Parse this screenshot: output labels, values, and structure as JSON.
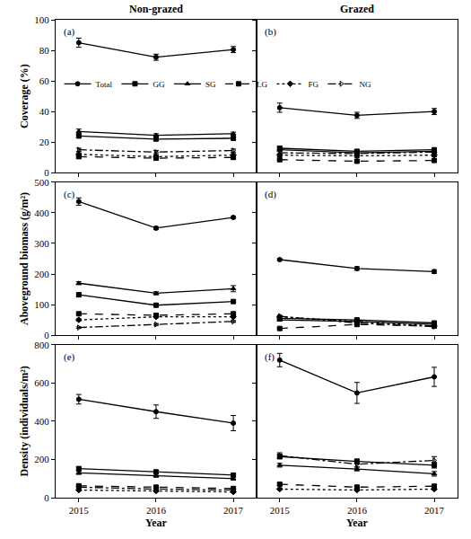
{
  "chart_data": [
    {
      "type": "line",
      "title": "Non-grazed",
      "annotations": [
        "(a)"
      ],
      "ylabel": "Coverage (%)",
      "x": [
        2015,
        2016,
        2017
      ],
      "xlim": [
        2014.7,
        2017.3
      ],
      "xticks": [
        2015,
        2016,
        2017
      ],
      "ylim": [
        0,
        100
      ],
      "yticks": [
        0,
        20,
        40,
        60,
        80,
        100
      ],
      "tick_labels": "y",
      "legend": "upper left",
      "series": [
        {
          "name": "Total",
          "values": [
            85,
            75.5,
            80.5
          ],
          "errors": [
            3,
            2,
            2
          ],
          "color": "#000000",
          "marker": "circle",
          "line_style": "solid"
        },
        {
          "name": "GG",
          "values": [
            24,
            22,
            22.5
          ],
          "errors": [
            1,
            1,
            1
          ],
          "color": "#000000",
          "marker": "square",
          "line_style": "solid"
        },
        {
          "name": "SG",
          "values": [
            27,
            24.5,
            25.5
          ],
          "errors": [
            1.5,
            1,
            1
          ],
          "color": "#000000",
          "marker": "triangle-up",
          "line_style": "solid"
        },
        {
          "name": "LG",
          "values": [
            10.5,
            9.5,
            10
          ],
          "errors": [
            1,
            1,
            1
          ],
          "color": "#000000",
          "marker": "square",
          "line_style": "dash"
        },
        {
          "name": "FG",
          "values": [
            12,
            10.5,
            11.5
          ],
          "errors": [
            1,
            1,
            1
          ],
          "color": "#000000",
          "marker": "diamond",
          "line_style": "dot"
        },
        {
          "name": "NG",
          "values": [
            15,
            13.5,
            14.5
          ],
          "errors": [
            1,
            1,
            1
          ],
          "color": "#000000",
          "marker": "triangle-right-open",
          "line_style": "dashdot"
        }
      ]
    },
    {
      "type": "line",
      "title": "Grazed",
      "annotations": [
        "(b)"
      ],
      "x": [
        2015,
        2016,
        2017
      ],
      "xlim": [
        2014.7,
        2017.3
      ],
      "xticks": [
        2015,
        2016,
        2017
      ],
      "ylim": [
        0,
        100
      ],
      "yticks": [
        0,
        20,
        40,
        60,
        80,
        100
      ],
      "tick_labels": false,
      "series": [
        {
          "name": "Total",
          "values": [
            42.5,
            37.5,
            40
          ],
          "errors": [
            3,
            2,
            2
          ],
          "color": "#000000",
          "marker": "circle",
          "line_style": "solid"
        },
        {
          "name": "GG",
          "values": [
            16,
            14,
            15
          ],
          "errors": [
            1,
            1,
            1
          ],
          "color": "#000000",
          "marker": "square",
          "line_style": "solid"
        },
        {
          "name": "SG",
          "values": [
            15,
            13,
            14
          ],
          "errors": [
            1,
            1,
            1
          ],
          "color": "#000000",
          "marker": "triangle-up",
          "line_style": "solid"
        },
        {
          "name": "LG",
          "values": [
            8.5,
            7.5,
            8
          ],
          "errors": [
            0.5,
            0.5,
            0.5
          ],
          "color": "#000000",
          "marker": "square",
          "line_style": "dash"
        },
        {
          "name": "FG",
          "values": [
            11.5,
            11,
            11.5
          ],
          "errors": [
            1,
            1,
            1
          ],
          "color": "#000000",
          "marker": "diamond",
          "line_style": "dot"
        },
        {
          "name": "NG",
          "values": [
            13,
            12.5,
            13.5
          ],
          "errors": [
            1,
            1,
            1
          ],
          "color": "#000000",
          "marker": "triangle-right-open",
          "line_style": "dashdot"
        }
      ]
    },
    {
      "type": "line",
      "annotations": [
        "(c)"
      ],
      "ylabel": "Aboveground biomass (g/m²)",
      "x": [
        2015,
        2016,
        2017
      ],
      "xlim": [
        2014.7,
        2017.3
      ],
      "xticks": [
        2015,
        2016,
        2017
      ],
      "ylim": [
        0,
        500
      ],
      "yticks": [
        0,
        100,
        200,
        300,
        400,
        500
      ],
      "tick_labels": "y",
      "series": [
        {
          "name": "Total",
          "values": [
            437,
            350,
            385
          ],
          "errors": [
            12,
            5,
            3
          ],
          "color": "#000000",
          "marker": "circle",
          "line_style": "solid"
        },
        {
          "name": "GG",
          "values": [
            132,
            98,
            110
          ],
          "errors": [
            6,
            3,
            3
          ],
          "color": "#000000",
          "marker": "square",
          "line_style": "solid"
        },
        {
          "name": "SG",
          "values": [
            170,
            137,
            152
          ],
          "errors": [
            5,
            5,
            10
          ],
          "color": "#000000",
          "marker": "triangle-up",
          "line_style": "solid"
        },
        {
          "name": "LG",
          "values": [
            70,
            65,
            70
          ],
          "errors": [
            3,
            3,
            3
          ],
          "color": "#000000",
          "marker": "square",
          "line_style": "dash"
        },
        {
          "name": "FG",
          "values": [
            50,
            60,
            60
          ],
          "errors": [
            3,
            3,
            3
          ],
          "color": "#000000",
          "marker": "diamond",
          "line_style": "dot"
        },
        {
          "name": "NG",
          "values": [
            25,
            35,
            45
          ],
          "errors": [
            2,
            3,
            3
          ],
          "color": "#000000",
          "marker": "triangle-right-open",
          "line_style": "dashdot"
        }
      ]
    },
    {
      "type": "line",
      "annotations": [
        "(d)"
      ],
      "x": [
        2015,
        2016,
        2017
      ],
      "xlim": [
        2014.7,
        2017.3
      ],
      "xticks": [
        2015,
        2016,
        2017
      ],
      "ylim": [
        0,
        500
      ],
      "yticks": [
        0,
        100,
        200,
        300,
        400,
        500
      ],
      "tick_labels": false,
      "series": [
        {
          "name": "Total",
          "values": [
            247,
            218,
            208
          ],
          "errors": [
            3,
            6,
            6
          ],
          "color": "#000000",
          "marker": "circle",
          "line_style": "solid"
        },
        {
          "name": "GG",
          "values": [
            55,
            50,
            40
          ],
          "errors": [
            3,
            3,
            3
          ],
          "color": "#000000",
          "marker": "square",
          "line_style": "solid"
        },
        {
          "name": "SG",
          "values": [
            50,
            45,
            35
          ],
          "errors": [
            3,
            3,
            3
          ],
          "color": "#000000",
          "marker": "triangle-up",
          "line_style": "solid"
        },
        {
          "name": "LG",
          "values": [
            22,
            35,
            30
          ],
          "errors": [
            2,
            2,
            2
          ],
          "color": "#000000",
          "marker": "square",
          "line_style": "dash"
        },
        {
          "name": "FG",
          "values": [
            60,
            45,
            30
          ],
          "errors": [
            3,
            3,
            3
          ],
          "color": "#000000",
          "marker": "diamond",
          "line_style": "dot"
        },
        {
          "name": "NG",
          "values": [
            62,
            40,
            28
          ],
          "errors": [
            3,
            3,
            3
          ],
          "color": "#000000",
          "marker": "triangle-right-open",
          "line_style": "dashdot"
        }
      ]
    },
    {
      "type": "line",
      "annotations": [
        "(e)"
      ],
      "ylabel": "Density (individuals/m²)",
      "xlabel": "Year",
      "x": [
        2015,
        2016,
        2017
      ],
      "xlim": [
        2014.7,
        2017.3
      ],
      "xticks": [
        2015,
        2016,
        2017
      ],
      "ylim": [
        0,
        800
      ],
      "yticks": [
        0,
        200,
        400,
        600,
        800
      ],
      "series": [
        {
          "name": "Total",
          "values": [
            515,
            450,
            390
          ],
          "errors": [
            25,
            35,
            40
          ],
          "color": "#000000",
          "marker": "circle",
          "line_style": "solid"
        },
        {
          "name": "GG",
          "values": [
            152,
            135,
            118
          ],
          "errors": [
            8,
            8,
            8
          ],
          "color": "#000000",
          "marker": "square",
          "line_style": "solid"
        },
        {
          "name": "SG",
          "values": [
            130,
            115,
            100
          ],
          "errors": [
            8,
            8,
            8
          ],
          "color": "#000000",
          "marker": "triangle-up",
          "line_style": "solid"
        },
        {
          "name": "LG",
          "values": [
            62,
            55,
            48
          ],
          "errors": [
            5,
            5,
            5
          ],
          "color": "#000000",
          "marker": "square",
          "line_style": "dash"
        },
        {
          "name": "FG",
          "values": [
            40,
            35,
            30
          ],
          "errors": [
            4,
            4,
            4
          ],
          "color": "#000000",
          "marker": "diamond",
          "line_style": "dot"
        },
        {
          "name": "NG",
          "values": [
            55,
            45,
            40
          ],
          "errors": [
            5,
            5,
            5
          ],
          "color": "#000000",
          "marker": "triangle-right-open",
          "line_style": "dashdot"
        }
      ]
    },
    {
      "type": "line",
      "annotations": [
        "(f)"
      ],
      "xlabel": "Year",
      "x": [
        2015,
        2016,
        2017
      ],
      "xlim": [
        2014.7,
        2017.3
      ],
      "xticks": [
        2015,
        2016,
        2017
      ],
      "ylim": [
        0,
        800
      ],
      "yticks": [
        0,
        200,
        400,
        600,
        800
      ],
      "tick_labels": "x",
      "series": [
        {
          "name": "Total",
          "values": [
            720,
            548,
            632
          ],
          "errors": [
            35,
            55,
            50
          ],
          "color": "#000000",
          "marker": "circle",
          "line_style": "solid"
        },
        {
          "name": "GG",
          "values": [
            215,
            190,
            170
          ],
          "errors": [
            12,
            12,
            15
          ],
          "color": "#000000",
          "marker": "square",
          "line_style": "solid"
        },
        {
          "name": "SG",
          "values": [
            170,
            150,
            125
          ],
          "errors": [
            10,
            10,
            12
          ],
          "color": "#000000",
          "marker": "triangle-up",
          "line_style": "solid"
        },
        {
          "name": "LG",
          "values": [
            70,
            55,
            60
          ],
          "errors": [
            6,
            6,
            6
          ],
          "color": "#000000",
          "marker": "square",
          "line_style": "dash"
        },
        {
          "name": "FG",
          "values": [
            45,
            40,
            45
          ],
          "errors": [
            4,
            4,
            4
          ],
          "color": "#000000",
          "marker": "diamond",
          "line_style": "dot"
        },
        {
          "name": "NG",
          "values": [
            220,
            175,
            195
          ],
          "errors": [
            15,
            15,
            20
          ],
          "color": "#000000",
          "marker": "triangle-right-open",
          "line_style": "dashdot"
        }
      ]
    }
  ]
}
